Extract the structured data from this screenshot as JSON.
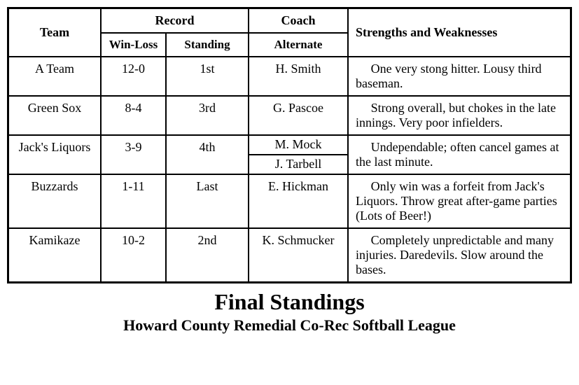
{
  "headers": {
    "team": "Team",
    "record": "Record",
    "winloss": "Win-Loss",
    "standing": "Standing",
    "coach": "Coach",
    "alternate": "Alternate",
    "strengths": "Strengths and Weaknesses"
  },
  "rows": [
    {
      "team": "A Team",
      "winloss": "12-0",
      "standing": "1st",
      "coach": "H. Smith",
      "alternate": "",
      "notes": "One very stong hitter. Lousy third baseman."
    },
    {
      "team": "Green Sox",
      "winloss": "8-4",
      "standing": "3rd",
      "coach": "G. Pascoe",
      "alternate": "",
      "notes": "Strong overall, but chokes in the late innings.  Very poor infielders."
    },
    {
      "team": "Jack's Liquors",
      "winloss": "3-9",
      "standing": "4th",
      "coach": "M. Mock",
      "alternate": "J. Tarbell",
      "notes": "Undependable; often cancel games at the last minute."
    },
    {
      "team": "Buzzards",
      "winloss": "1-11",
      "standing": "Last",
      "coach": "E. Hickman",
      "alternate": "",
      "notes": "Only win was a forfeit from Jack's Liquors.  Throw great after-game parties (Lots of Beer!)"
    },
    {
      "team": "Kamikaze",
      "winloss": "10-2",
      "standing": "2nd",
      "coach": "K. Schmucker",
      "alternate": "",
      "notes": "Completely unpredictable and many injuries.  Daredevils.  Slow around the bases."
    }
  ],
  "title": "Final Standings",
  "subtitle": "Howard County Remedial Co-Rec Softball League"
}
